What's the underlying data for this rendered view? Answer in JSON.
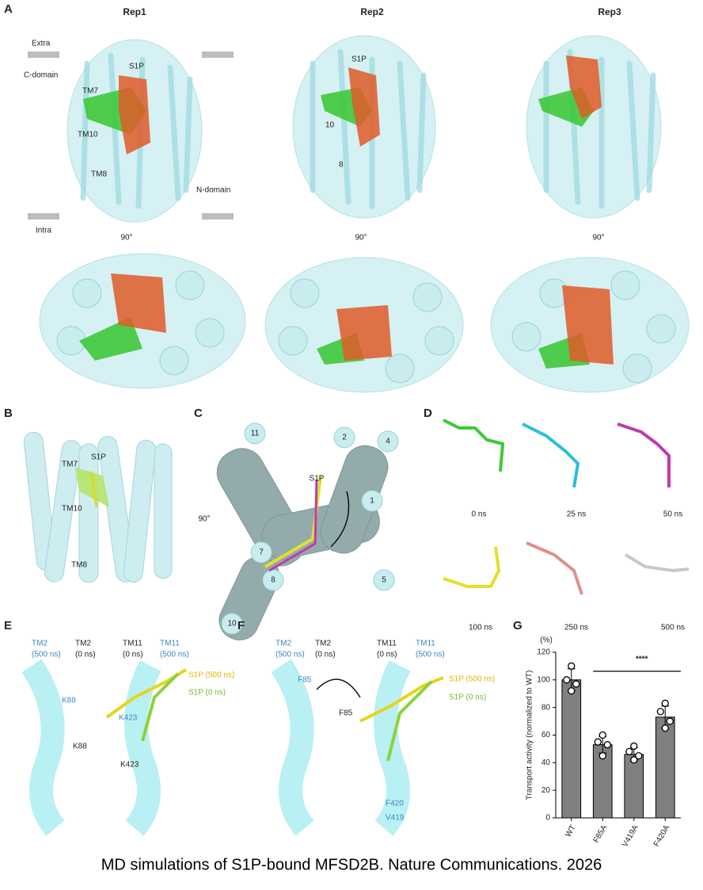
{
  "caption": "MD simulations of S1P-bound MFSD2B. Nature Communications. 2026",
  "panel_a": {
    "label": "A",
    "columns": [
      "Rep1",
      "Rep2",
      "Rep3"
    ],
    "labels": [
      "Extra",
      "C-domain",
      "TM7",
      "S1P",
      "TM10",
      "TM8",
      "N-domain",
      "Intra",
      "S1P",
      "10",
      "8"
    ],
    "rotation": "90°"
  },
  "panel_b": {
    "label": "B",
    "labels": [
      "TM7",
      "S1P",
      "TM10",
      "TM8"
    ],
    "rotation": "90°"
  },
  "panel_c": {
    "label": "C",
    "labels": [
      "11",
      "2",
      "4",
      "S1P",
      "1",
      "7",
      "8",
      "5",
      "10"
    ]
  },
  "panel_d": {
    "label": "D",
    "times": [
      "0 ns",
      "25 ns",
      "50 ns",
      "100 ns",
      "250 ns",
      "500 ns"
    ]
  },
  "panel_e": {
    "label": "E",
    "labels": [
      [
        "TM2",
        "(500 ns)"
      ],
      [
        "TM2",
        "(0 ns)"
      ],
      [
        "TM11",
        "(0 ns)"
      ],
      [
        "TM11",
        "(500 ns)"
      ],
      "S1P  (500 ns)",
      "S1P  (0 ns)",
      "K88",
      "K88",
      "K423",
      "K423"
    ]
  },
  "panel_f": {
    "label": "F",
    "labels": [
      [
        "TM2",
        "(500 ns)"
      ],
      [
        "TM2",
        "(0 ns)"
      ],
      [
        "TM11",
        "(0 ns)"
      ],
      [
        "TM11",
        "(500 ns)"
      ],
      "S1P  (500 ns)",
      "S1P  (0 ns)",
      "F85",
      "F85",
      "F420",
      "V419"
    ]
  },
  "panel_g": {
    "label": "G"
  },
  "chart_data": {
    "type": "bar",
    "ylabel": "Transport activity (normalized to WT)",
    "unit_label": "(%)",
    "categories": [
      "WT",
      "F85A",
      "V419A",
      "F420A"
    ],
    "values": [
      100,
      53,
      46,
      73
    ],
    "errors": [
      8,
      6,
      5,
      8
    ],
    "points": [
      [
        110,
        100,
        97,
        92
      ],
      [
        60,
        55,
        53,
        45
      ],
      [
        52,
        48,
        45,
        42
      ],
      [
        83,
        77,
        70,
        65
      ]
    ],
    "color": "#808080",
    "ylim": [
      0,
      120
    ],
    "yticks": [
      0,
      20,
      40,
      60,
      80,
      100,
      120
    ],
    "significance": "****"
  }
}
